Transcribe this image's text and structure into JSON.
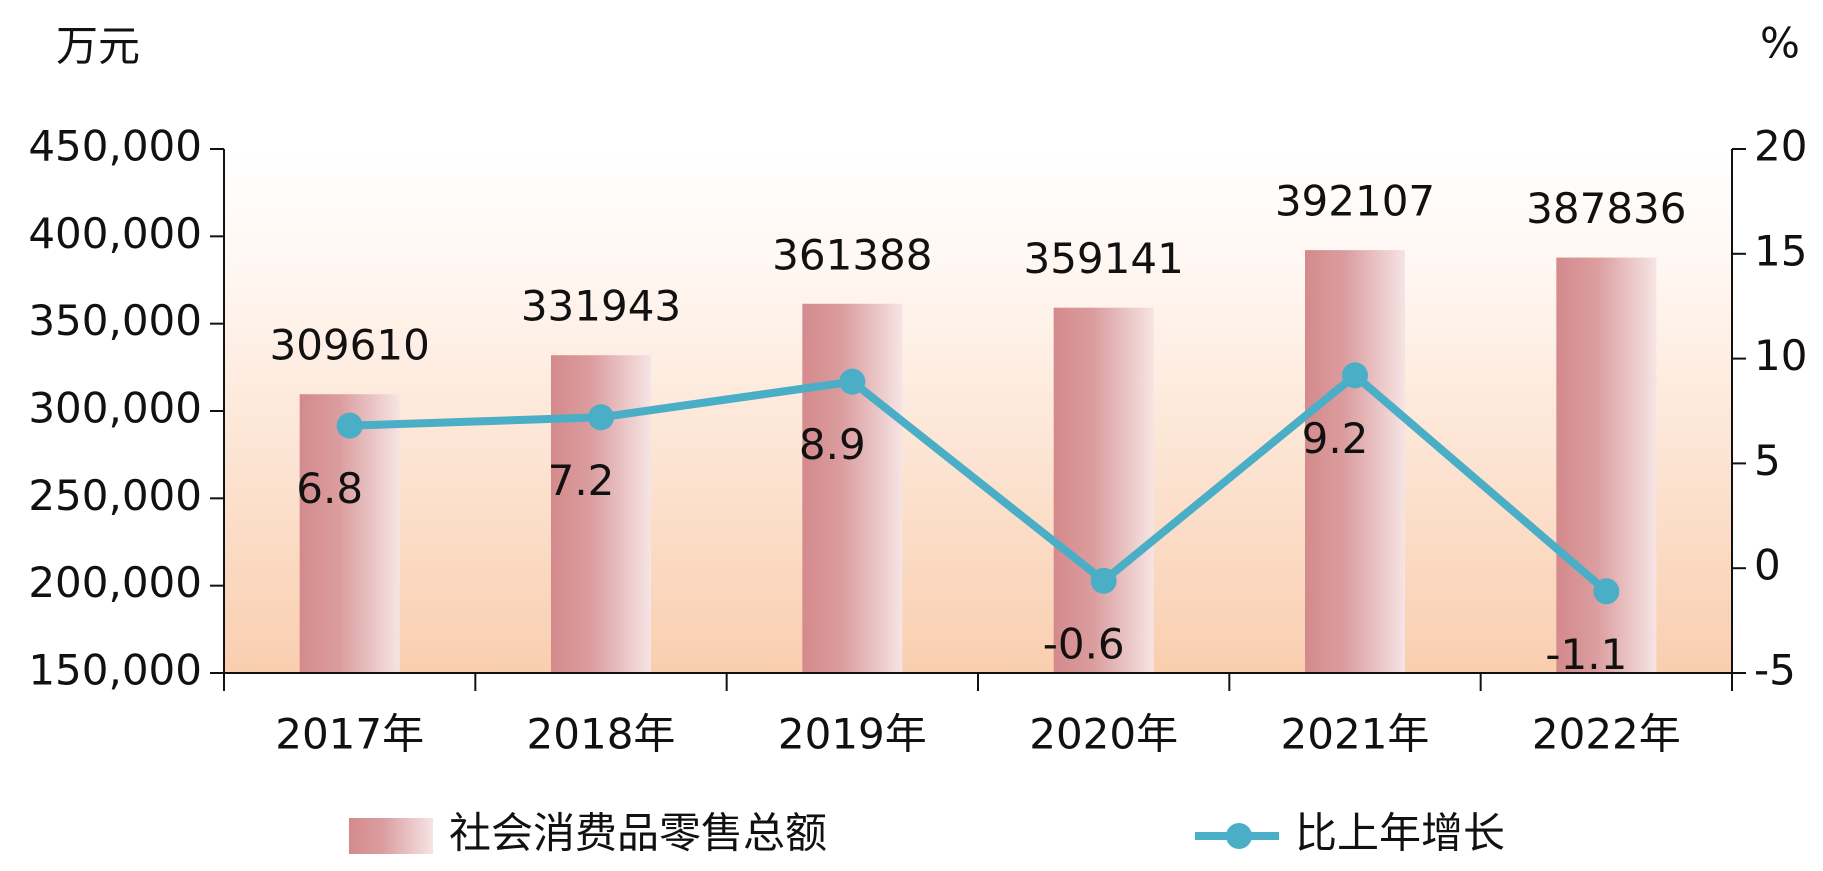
{
  "chart_data": {
    "type": "bar-line",
    "y_unit": "万元",
    "y2_unit": "%",
    "categories": [
      "2017年",
      "2018年",
      "2019年",
      "2020年",
      "2021年",
      "2022年"
    ],
    "series": [
      {
        "name": "社会消费品零售总额",
        "type": "bar",
        "color": "#d48a8c",
        "values": [
          309610,
          331943,
          361388,
          359141,
          392107,
          387836
        ]
      },
      {
        "name": "比上年增长",
        "type": "line",
        "axis": "y2",
        "color": "#4aaec6",
        "values": [
          6.8,
          7.2,
          8.9,
          -0.6,
          9.2,
          -1.1
        ]
      }
    ],
    "ylim": [
      150000,
      450000
    ],
    "yticks": [
      {
        "value": 150000,
        "label": "150,000"
      },
      {
        "value": 200000,
        "label": "200,000"
      },
      {
        "value": 250000,
        "label": "250,000"
      },
      {
        "value": 300000,
        "label": "300,000"
      },
      {
        "value": 350000,
        "label": "350,000"
      },
      {
        "value": 400000,
        "label": "400,000"
      },
      {
        "value": 450000,
        "label": "450,000"
      }
    ],
    "y2lim": [
      -5,
      20
    ],
    "y2ticks": [
      -5,
      0,
      5,
      10,
      15,
      20
    ]
  }
}
